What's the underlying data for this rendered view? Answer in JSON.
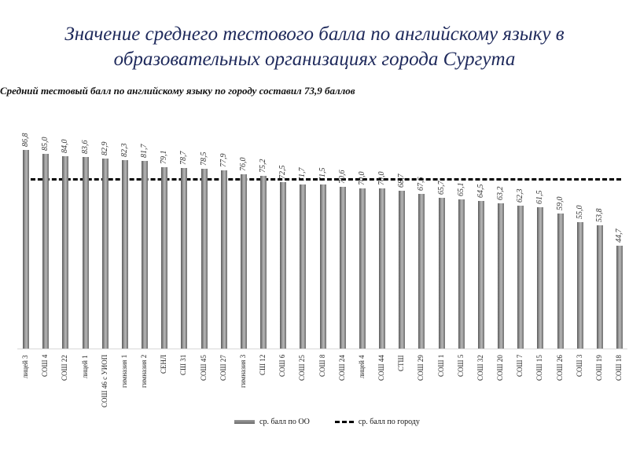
{
  "header": {
    "title_line1": "Значение среднего тестового балла по английскому языку в",
    "title_line2": "образовательных организациях города Сургута"
  },
  "chart_data": {
    "type": "bar",
    "title": "Значение среднего тестового балла по английскому языку в образовательных организациях города Сургута",
    "subtitle": "Средний тестовый балл по английскому языку по городу составил 73,9 баллов",
    "xlabel": "",
    "ylabel": "",
    "ylim": [
      0,
      100
    ],
    "grid": false,
    "legend_position": "bottom",
    "categories": [
      "лицей 3",
      "СОШ 4",
      "СОШ 22",
      "лицей 1",
      "СОШ 46 с УИОП",
      "гимназия 1",
      "гимназия 2",
      "СЕНЛ",
      "СШ 31",
      "СОШ 45",
      "СОШ 27",
      "гимназия 3",
      "СШ 12",
      "СОШ 6",
      "СОШ 25",
      "СОШ 8",
      "СОШ 24",
      "лицей 4",
      "СОШ 44",
      "СТШ",
      "СОШ 29",
      "СОШ 1",
      "СОШ 5",
      "СОШ 32",
      "СОШ 20",
      "СОШ 7",
      "СОШ 15",
      "СОШ 26",
      "СОШ 3",
      "СОШ 19",
      "СОШ 18"
    ],
    "series": [
      {
        "name": "ср. балл по ОО",
        "style": "bar",
        "color": "#8a8a8a",
        "values": [
          86.8,
          85.0,
          84.0,
          83.6,
          82.9,
          82.3,
          81.7,
          79.1,
          78.7,
          78.5,
          77.9,
          76.0,
          75.2,
          72.5,
          71.7,
          71.5,
          70.6,
          70.0,
          70.0,
          68.7,
          67.6,
          65.7,
          65.1,
          64.5,
          63.2,
          62.3,
          61.5,
          59.0,
          55.0,
          53.8,
          44.7
        ],
        "labels": [
          "86,8",
          "85,0",
          "84,0",
          "83,6",
          "82,9",
          "82,3",
          "81,7",
          "79,1",
          "78,7",
          "78,5",
          "77,9",
          "76,0",
          "75,2",
          "72,5",
          "71,7",
          "71,5",
          "70,6",
          "70,0",
          "70,0",
          "68,7",
          "67,6",
          "65,7",
          "65,1",
          "64,5",
          "63,2",
          "62,3",
          "61,5",
          "59,0",
          "55,0",
          "53,8",
          "44,7"
        ]
      },
      {
        "name": "ср. балл по городу",
        "style": "dashed-line",
        "color": "#000000",
        "value": 73.9
      }
    ]
  },
  "legend": {
    "bars_label": "ср. балл по ОО",
    "line_label": "ср. балл по городу"
  }
}
